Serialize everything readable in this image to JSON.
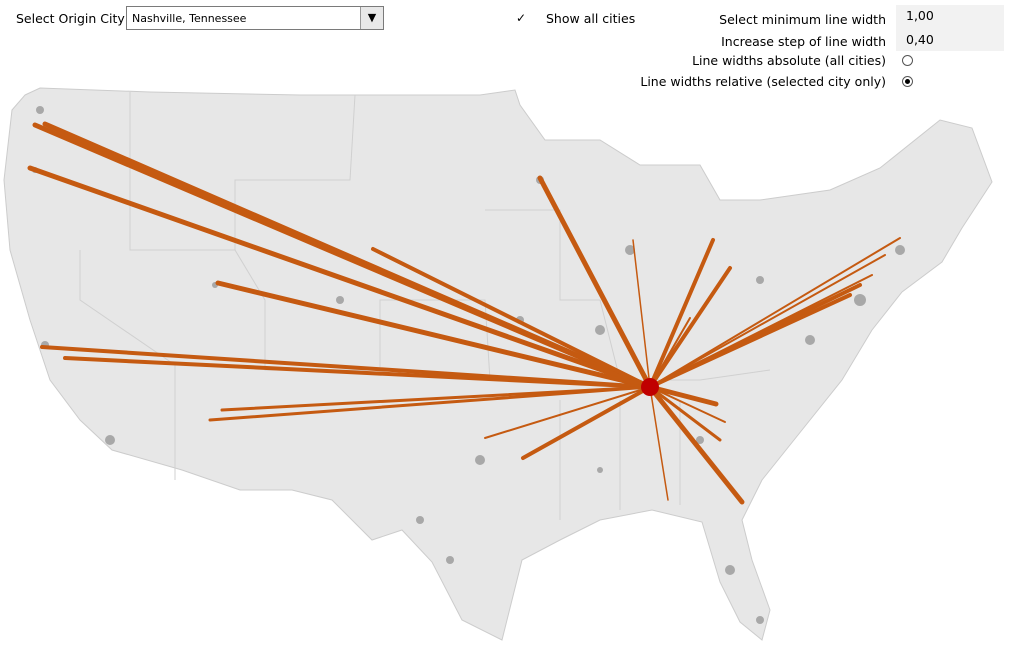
{
  "controls": {
    "origin_label": "Select Origin City",
    "origin_value": "Nashville, Tennessee",
    "show_all": "Show all cities",
    "min_width_label": "Select minimum line width",
    "min_width_value": "1,00",
    "step_label": "Increase step of line width",
    "step_value": "0,40",
    "absolute_label": "Line widths absolute (all cities)",
    "relative_label": "Line widths relative (selected city only)"
  }
}
